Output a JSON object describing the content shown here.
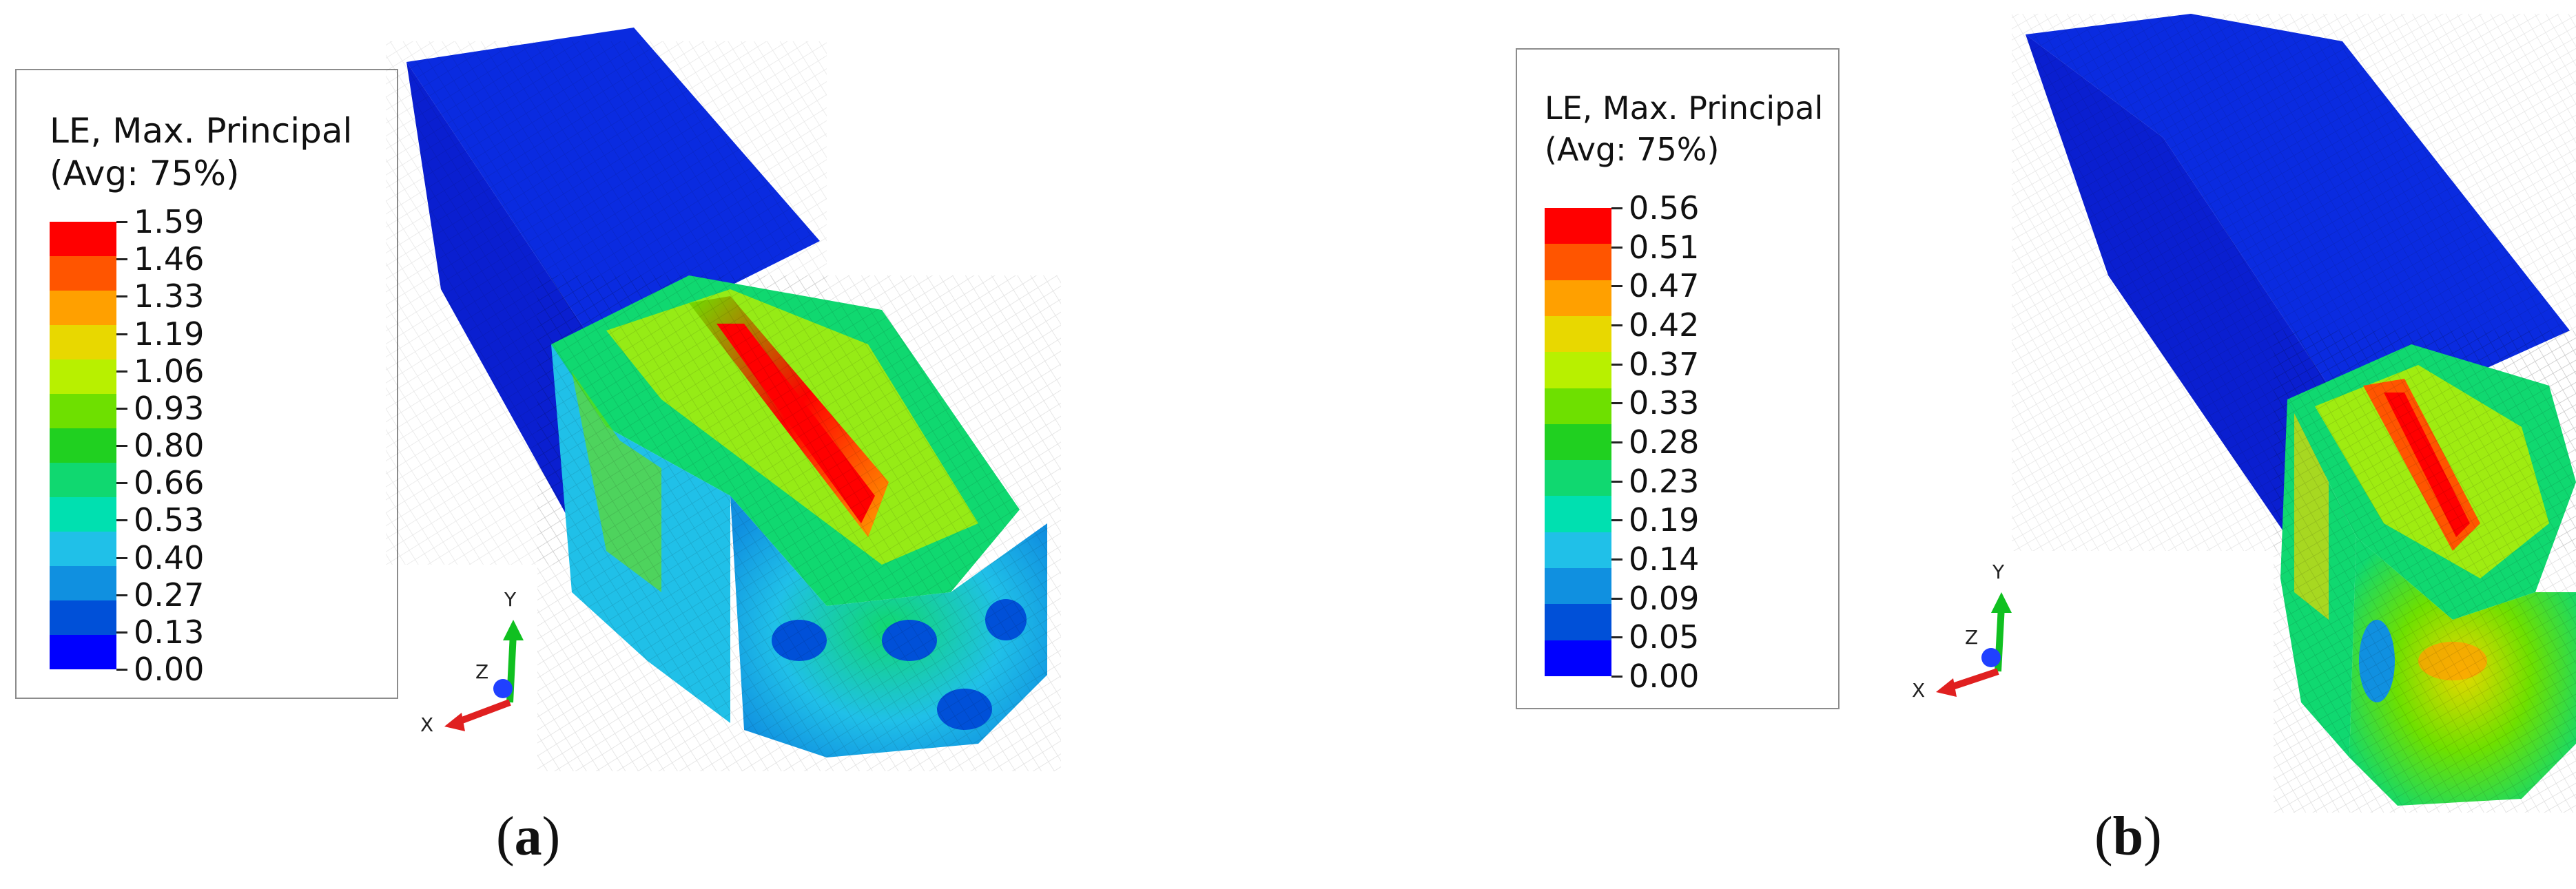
{
  "panels": [
    {
      "id": "a",
      "legend": {
        "title_line1": "LE, Max. Principal",
        "title_line2": "(Avg: 75%)",
        "values": [
          "1.59",
          "1.46",
          "1.33",
          "1.19",
          "1.06",
          "0.93",
          "0.80",
          "0.66",
          "0.53",
          "0.40",
          "0.27",
          "0.13",
          "0.00"
        ]
      },
      "triad": {
        "x": "X",
        "y": "Y",
        "z": "Z"
      },
      "caption": {
        "open": "(",
        "letter": "a",
        "close": ")"
      }
    },
    {
      "id": "b",
      "legend": {
        "title_line1": "LE, Max. Principal",
        "title_line2": "(Avg: 75%)",
        "values": [
          "0.56",
          "0.51",
          "0.47",
          "0.42",
          "0.37",
          "0.33",
          "0.28",
          "0.23",
          "0.19",
          "0.14",
          "0.09",
          "0.05",
          "0.00"
        ]
      },
      "triad": {
        "x": "X",
        "y": "Y",
        "z": "Z"
      },
      "caption": {
        "open": "(",
        "letter": "b",
        "close": ")"
      }
    }
  ],
  "colors": {
    "contour_scale": [
      "#ff0000",
      "#ff5500",
      "#ffa000",
      "#e8d800",
      "#b8f000",
      "#6ee000",
      "#20d020",
      "#10d870",
      "#00e0b0",
      "#20c0e8",
      "#1090e0",
      "#0050d8",
      "#0000ff"
    ],
    "mesh_base": "#0a1fd8",
    "axis_x": "#e02020",
    "axis_y": "#10c020",
    "axis_z": "#2040ff"
  }
}
